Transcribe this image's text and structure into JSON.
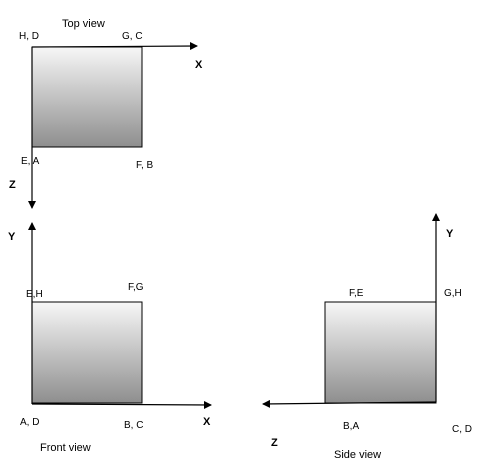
{
  "colors": {
    "square_top": "#f7f7f7",
    "square_bottom": "#8e8e8e",
    "stroke": "#000000"
  },
  "top_view": {
    "title": "Top view",
    "label_tl": "H, D",
    "label_tr": "G, C",
    "label_bl": "E, A",
    "label_br": "F, B",
    "axis_h": "X",
    "axis_v": "Z"
  },
  "front_view": {
    "title": "Front view",
    "label_tl": "E,H",
    "label_tr": "F,G",
    "label_bl": "A, D",
    "label_br": "B, C",
    "axis_h": "X",
    "axis_v": "Y"
  },
  "side_view": {
    "title": "Side view",
    "label_tl": "F,E",
    "label_tr": "G,H",
    "label_bl": "B,A",
    "label_br": "C, D",
    "axis_h": "Z",
    "axis_v": "Y"
  }
}
